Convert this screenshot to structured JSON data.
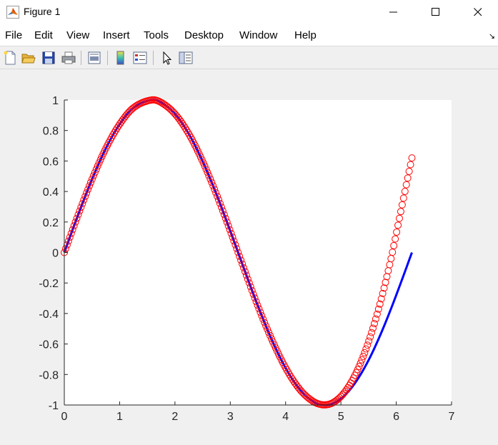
{
  "window": {
    "title": "Figure 1",
    "icon": "matlab-icon"
  },
  "menu": {
    "items": [
      "File",
      "Edit",
      "View",
      "Insert",
      "Tools",
      "Desktop",
      "Window",
      "Help"
    ]
  },
  "toolbar": {
    "buttons": [
      "new-figure-icon",
      "open-file-icon",
      "save-icon",
      "print-icon",
      "print-preview-icon",
      "colorbar-icon",
      "legend-icon",
      "pointer-icon",
      "property-editor-icon"
    ]
  },
  "chart_data": {
    "type": "line",
    "xlim": [
      0,
      7
    ],
    "ylim": [
      -1,
      1
    ],
    "x_ticks": [
      "0",
      "1",
      "2",
      "3",
      "4",
      "5",
      "6",
      "7"
    ],
    "y_ticks": [
      "-1",
      "-0.8",
      "-0.6",
      "-0.4",
      "-0.2",
      "0",
      "0.2",
      "0.4",
      "0.6",
      "0.8",
      "1"
    ],
    "grid": false,
    "series": [
      {
        "style": "solid line",
        "color": "#0000ff",
        "x": [
          0,
          0.25,
          0.5,
          0.75,
          1.0,
          1.25,
          1.5708,
          1.75,
          2.0,
          2.25,
          2.5,
          2.75,
          3.0,
          3.1416,
          3.25,
          3.5,
          3.75,
          4.0,
          4.25,
          4.5,
          4.7124,
          4.9,
          5.1,
          5.3,
          5.5,
          5.7,
          5.9,
          6.1,
          6.2832
        ],
        "y": [
          0,
          0.247,
          0.479,
          0.682,
          0.841,
          0.949,
          1.0,
          0.984,
          0.909,
          0.778,
          0.598,
          0.382,
          0.141,
          0.0,
          -0.108,
          -0.351,
          -0.572,
          -0.757,
          -0.895,
          -0.978,
          -1.0,
          -0.982,
          -0.926,
          -0.832,
          -0.706,
          -0.551,
          -0.374,
          -0.182,
          0.0
        ]
      },
      {
        "style": "circle markers",
        "color": "#ff0000",
        "x": [
          0,
          0.25,
          0.5,
          0.75,
          1.0,
          1.25,
          1.5708,
          1.75,
          2.0,
          2.25,
          2.5,
          2.75,
          3.0,
          3.1416,
          3.25,
          3.5,
          3.75,
          4.0,
          4.25,
          4.5,
          4.7124,
          4.9,
          5.1,
          5.3,
          5.5,
          5.7,
          5.9,
          6.1,
          6.2832
        ],
        "y": [
          0,
          0.247,
          0.479,
          0.682,
          0.841,
          0.949,
          1.0,
          0.984,
          0.909,
          0.778,
          0.598,
          0.382,
          0.141,
          0.0,
          -0.108,
          -0.352,
          -0.57,
          -0.756,
          -0.895,
          -0.977,
          -0.999,
          -0.975,
          -0.9,
          -0.77,
          -0.585,
          -0.345,
          -0.05,
          0.3,
          0.62
        ]
      }
    ]
  }
}
